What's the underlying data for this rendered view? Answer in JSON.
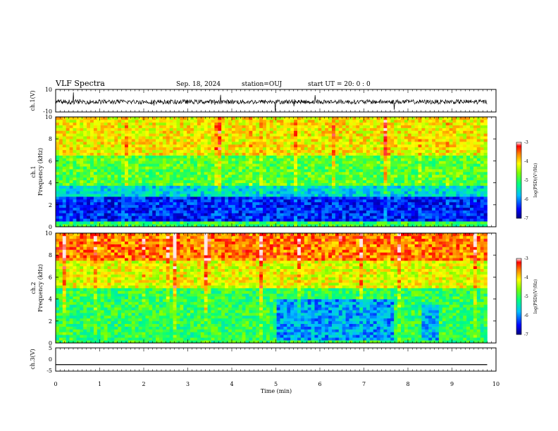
{
  "header": {
    "title": "VLF Spectra",
    "date": "Sep. 18, 2024",
    "station": "station=OUJ",
    "start": "start  UT  =   20: 0  : 0"
  },
  "chart_data": [
    {
      "type": "line",
      "panel": "ch1-waveform",
      "ylabel": "ch.1(V)",
      "ylim": [
        -10,
        10
      ],
      "yticks": [
        "10",
        "-10"
      ],
      "description_values": {
        "baseline_V": -1,
        "typical_noise_V": 2
      }
    },
    {
      "type": "heatmap",
      "panel": "ch1-spectrogram",
      "ylabel_top": "ch.1",
      "ylabel": "Frequency (kHz)",
      "ylim": [
        0,
        10
      ],
      "yticks": [
        "0",
        "2",
        "4",
        "6",
        "8",
        "10"
      ],
      "colorbar": {
        "label": "log(PSD)(V²/Hz)",
        "range": [
          -7,
          -3
        ],
        "ticks": [
          "-3",
          "-4",
          "-5",
          "-6",
          "-7"
        ]
      },
      "bands_log_psd": [
        {
          "f_range_kHz": [
            0,
            0.4
          ],
          "level": -5.0
        },
        {
          "f_range_kHz": [
            0.4,
            2.8
          ],
          "level": -6.4
        },
        {
          "f_range_kHz": [
            2.8,
            3.8
          ],
          "level": -5.6
        },
        {
          "f_range_kHz": [
            3.8,
            6.5
          ],
          "level": -4.8
        },
        {
          "f_range_kHz": [
            6.5,
            10
          ],
          "level": -4.1
        }
      ]
    },
    {
      "type": "heatmap",
      "panel": "ch2-spectrogram",
      "ylabel_top": "ch.2",
      "ylabel": "Frequency (kHz)",
      "ylim": [
        0,
        10
      ],
      "yticks": [
        "0",
        "2",
        "4",
        "6",
        "8",
        "10"
      ],
      "colorbar": {
        "label": "log(PSD)(V²/Hz)",
        "range": [
          -7,
          -3
        ],
        "ticks": [
          "-3",
          "-4",
          "-5",
          "-6",
          "-7"
        ]
      },
      "bands_log_psd": [
        {
          "f_range_kHz": [
            0,
            5
          ],
          "level": -5.0
        },
        {
          "f_range_kHz": [
            5,
            7.5
          ],
          "level": -4.2
        },
        {
          "f_range_kHz": [
            7.5,
            10
          ],
          "level": -3.6
        }
      ],
      "low_level_patches": [
        {
          "t_range_min": [
            5.0,
            7.7
          ],
          "f_range_kHz": [
            0.3,
            4.0
          ],
          "level": -5.9
        },
        {
          "t_range_min": [
            8.3,
            8.7
          ],
          "f_range_kHz": [
            0.3,
            3.5
          ],
          "level": -5.8
        }
      ]
    },
    {
      "type": "line",
      "panel": "ch3-waveform",
      "ylabel": "ch.3(V)",
      "ylim": [
        -5,
        5
      ],
      "yticks": [
        "5",
        "0",
        "-5"
      ],
      "x": [
        0,
        9.8
      ],
      "values": [
        -2.2,
        -2.2
      ]
    }
  ],
  "xaxis": {
    "label": "Time (min)",
    "range": [
      0,
      10
    ],
    "ticks": [
      "0",
      "1",
      "2",
      "3",
      "4",
      "5",
      "6",
      "7",
      "8",
      "9",
      "10"
    ]
  }
}
